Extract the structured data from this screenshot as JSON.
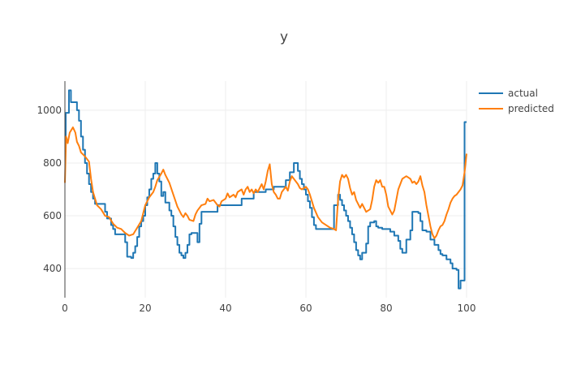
{
  "chart_data": {
    "type": "line",
    "title": "y",
    "xlabel": "",
    "ylabel": "",
    "xlim": [
      0,
      100
    ],
    "ylim": [
      290,
      1110
    ],
    "x_ticks": [
      0,
      20,
      40,
      60,
      80,
      100
    ],
    "y_ticks": [
      400,
      600,
      800,
      1000
    ],
    "grid": true,
    "legend_position": "top-right",
    "series": [
      {
        "name": "actual",
        "color": "#1f77b4",
        "line_shape": "step",
        "points": [
          [
            0,
            845
          ],
          [
            0.2,
            990
          ],
          [
            1,
            1075
          ],
          [
            1.5,
            1030
          ],
          [
            3,
            1000
          ],
          [
            3.5,
            960
          ],
          [
            4,
            900
          ],
          [
            4.5,
            850
          ],
          [
            5,
            800
          ],
          [
            5.5,
            760
          ],
          [
            6,
            720
          ],
          [
            6.5,
            690
          ],
          [
            7,
            665
          ],
          [
            7.5,
            645
          ],
          [
            10,
            615
          ],
          [
            10.5,
            590
          ],
          [
            11.5,
            565
          ],
          [
            12,
            550
          ],
          [
            12.5,
            530
          ],
          [
            15,
            500
          ],
          [
            15.5,
            445
          ],
          [
            16.5,
            440
          ],
          [
            17,
            460
          ],
          [
            17.5,
            485
          ],
          [
            18,
            520
          ],
          [
            18.5,
            560
          ],
          [
            19,
            580
          ],
          [
            19.5,
            600
          ],
          [
            20,
            640
          ],
          [
            20.5,
            670
          ],
          [
            21,
            700
          ],
          [
            21.5,
            740
          ],
          [
            22,
            760
          ],
          [
            22.5,
            800
          ],
          [
            23,
            760
          ],
          [
            23.5,
            730
          ],
          [
            24,
            675
          ],
          [
            24.5,
            690
          ],
          [
            25,
            650
          ],
          [
            26,
            620
          ],
          [
            26.5,
            600
          ],
          [
            27,
            560
          ],
          [
            27.5,
            520
          ],
          [
            28,
            490
          ],
          [
            28.5,
            460
          ],
          [
            29,
            450
          ],
          [
            29.5,
            440
          ],
          [
            30,
            460
          ],
          [
            30.5,
            490
          ],
          [
            31,
            530
          ],
          [
            31.5,
            535
          ],
          [
            33,
            500
          ],
          [
            33.5,
            570
          ],
          [
            34,
            615
          ],
          [
            38,
            640
          ],
          [
            39,
            640
          ],
          [
            44,
            665
          ],
          [
            47,
            690
          ],
          [
            50,
            700
          ],
          [
            52,
            710
          ],
          [
            55,
            735
          ],
          [
            56,
            765
          ],
          [
            57,
            800
          ],
          [
            58,
            770
          ],
          [
            58.5,
            740
          ],
          [
            59,
            720
          ],
          [
            59.5,
            700
          ],
          [
            60,
            680
          ],
          [
            60.5,
            655
          ],
          [
            61,
            630
          ],
          [
            61.5,
            595
          ],
          [
            62,
            565
          ],
          [
            62.5,
            550
          ],
          [
            67,
            640
          ],
          [
            68,
            680
          ],
          [
            68.5,
            660
          ],
          [
            69,
            640
          ],
          [
            69.5,
            620
          ],
          [
            70,
            600
          ],
          [
            70.5,
            580
          ],
          [
            71,
            555
          ],
          [
            71.5,
            530
          ],
          [
            72,
            500
          ],
          [
            72.5,
            470
          ],
          [
            73,
            450
          ],
          [
            73.5,
            435
          ],
          [
            74,
            460
          ],
          [
            75,
            495
          ],
          [
            75.5,
            560
          ],
          [
            76,
            575
          ],
          [
            77,
            580
          ],
          [
            77.5,
            560
          ],
          [
            78,
            555
          ],
          [
            79,
            550
          ],
          [
            81,
            540
          ],
          [
            82,
            525
          ],
          [
            83,
            505
          ],
          [
            83.5,
            475
          ],
          [
            84,
            460
          ],
          [
            85,
            510
          ],
          [
            86,
            545
          ],
          [
            86.5,
            615
          ],
          [
            88,
            610
          ],
          [
            88.5,
            580
          ],
          [
            89,
            545
          ],
          [
            90,
            540
          ],
          [
            91,
            510
          ],
          [
            92,
            490
          ],
          [
            93,
            470
          ],
          [
            93.5,
            455
          ],
          [
            94,
            450
          ],
          [
            95,
            435
          ],
          [
            96,
            420
          ],
          [
            96.5,
            400
          ],
          [
            97.5,
            395
          ],
          [
            98,
            325
          ],
          [
            98.5,
            355
          ],
          [
            99.3,
            355
          ],
          [
            99.5,
            955
          ],
          [
            100,
            955
          ]
        ]
      },
      {
        "name": "predicted",
        "color": "#ff7f0e",
        "line_shape": "linear",
        "points": [
          [
            0,
            725
          ],
          [
            0.3,
            900
          ],
          [
            0.7,
            875
          ],
          [
            1.2,
            915
          ],
          [
            2,
            935
          ],
          [
            2.6,
            915
          ],
          [
            3,
            880
          ],
          [
            3.5,
            865
          ],
          [
            4,
            840
          ],
          [
            5,
            825
          ],
          [
            6,
            805
          ],
          [
            6.5,
            740
          ],
          [
            7,
            690
          ],
          [
            8,
            640
          ],
          [
            9,
            625
          ],
          [
            10,
            600
          ],
          [
            11,
            595
          ],
          [
            12,
            570
          ],
          [
            13,
            555
          ],
          [
            14,
            550
          ],
          [
            15,
            535
          ],
          [
            16,
            525
          ],
          [
            17,
            530
          ],
          [
            18,
            555
          ],
          [
            19,
            580
          ],
          [
            19.5,
            610
          ],
          [
            20,
            640
          ],
          [
            21,
            670
          ],
          [
            22,
            690
          ],
          [
            22.5,
            710
          ],
          [
            23,
            735
          ],
          [
            24,
            760
          ],
          [
            24.5,
            775
          ],
          [
            25,
            755
          ],
          [
            26,
            725
          ],
          [
            27,
            680
          ],
          [
            28,
            635
          ],
          [
            29,
            605
          ],
          [
            29.5,
            595
          ],
          [
            30,
            610
          ],
          [
            30.5,
            600
          ],
          [
            31,
            585
          ],
          [
            32,
            580
          ],
          [
            32.5,
            605
          ],
          [
            33,
            620
          ],
          [
            34,
            640
          ],
          [
            35,
            645
          ],
          [
            35.5,
            665
          ],
          [
            36,
            655
          ],
          [
            37,
            660
          ],
          [
            38,
            640
          ],
          [
            38.5,
            635
          ],
          [
            39,
            655
          ],
          [
            40,
            665
          ],
          [
            40.5,
            685
          ],
          [
            41,
            670
          ],
          [
            42,
            680
          ],
          [
            42.5,
            670
          ],
          [
            43,
            690
          ],
          [
            44,
            700
          ],
          [
            44.5,
            680
          ],
          [
            45,
            700
          ],
          [
            45.5,
            710
          ],
          [
            46,
            690
          ],
          [
            46.5,
            700
          ],
          [
            47,
            685
          ],
          [
            47.5,
            700
          ],
          [
            48,
            690
          ],
          [
            48.5,
            705
          ],
          [
            49,
            720
          ],
          [
            49.5,
            700
          ],
          [
            50,
            730
          ],
          [
            50.5,
            770
          ],
          [
            51,
            795
          ],
          [
            51.5,
            720
          ],
          [
            52,
            690
          ],
          [
            52.5,
            680
          ],
          [
            53,
            665
          ],
          [
            53.5,
            665
          ],
          [
            54,
            690
          ],
          [
            54.5,
            700
          ],
          [
            55,
            710
          ],
          [
            55.5,
            695
          ],
          [
            56,
            730
          ],
          [
            56.5,
            750
          ],
          [
            57,
            740
          ],
          [
            58,
            720
          ],
          [
            58.5,
            705
          ],
          [
            59,
            700
          ],
          [
            60,
            710
          ],
          [
            60.5,
            700
          ],
          [
            61,
            680
          ],
          [
            62,
            630
          ],
          [
            63,
            595
          ],
          [
            64,
            575
          ],
          [
            65,
            565
          ],
          [
            66,
            555
          ],
          [
            67,
            550
          ],
          [
            67.5,
            545
          ],
          [
            68,
            660
          ],
          [
            68.5,
            730
          ],
          [
            69,
            755
          ],
          [
            69.5,
            745
          ],
          [
            70,
            755
          ],
          [
            70.5,
            740
          ],
          [
            71,
            705
          ],
          [
            71.5,
            680
          ],
          [
            72,
            690
          ],
          [
            72.5,
            660
          ],
          [
            73,
            645
          ],
          [
            73.5,
            630
          ],
          [
            74,
            645
          ],
          [
            75,
            615
          ],
          [
            75.5,
            620
          ],
          [
            76,
            625
          ],
          [
            76.5,
            660
          ],
          [
            77,
            710
          ],
          [
            77.5,
            735
          ],
          [
            78,
            725
          ],
          [
            78.5,
            735
          ],
          [
            79,
            710
          ],
          [
            79.5,
            710
          ],
          [
            80,
            680
          ],
          [
            80.5,
            635
          ],
          [
            81,
            620
          ],
          [
            81.5,
            605
          ],
          [
            82,
            620
          ],
          [
            82.5,
            660
          ],
          [
            83,
            700
          ],
          [
            83.5,
            720
          ],
          [
            84,
            740
          ],
          [
            84.5,
            745
          ],
          [
            85,
            750
          ],
          [
            85.5,
            745
          ],
          [
            86,
            740
          ],
          [
            86.5,
            725
          ],
          [
            87,
            730
          ],
          [
            87.5,
            720
          ],
          [
            88,
            730
          ],
          [
            88.5,
            750
          ],
          [
            89,
            715
          ],
          [
            89.5,
            690
          ],
          [
            90,
            640
          ],
          [
            90.5,
            600
          ],
          [
            91,
            560
          ],
          [
            91.5,
            530
          ],
          [
            92,
            515
          ],
          [
            92.5,
            525
          ],
          [
            93,
            545
          ],
          [
            93.5,
            560
          ],
          [
            94,
            565
          ],
          [
            94.5,
            580
          ],
          [
            95,
            605
          ],
          [
            95.5,
            625
          ],
          [
            96,
            650
          ],
          [
            96.5,
            665
          ],
          [
            97,
            675
          ],
          [
            97.5,
            680
          ],
          [
            98,
            690
          ],
          [
            98.5,
            700
          ],
          [
            99,
            715
          ],
          [
            99.5,
            765
          ],
          [
            100,
            835
          ]
        ]
      }
    ]
  }
}
